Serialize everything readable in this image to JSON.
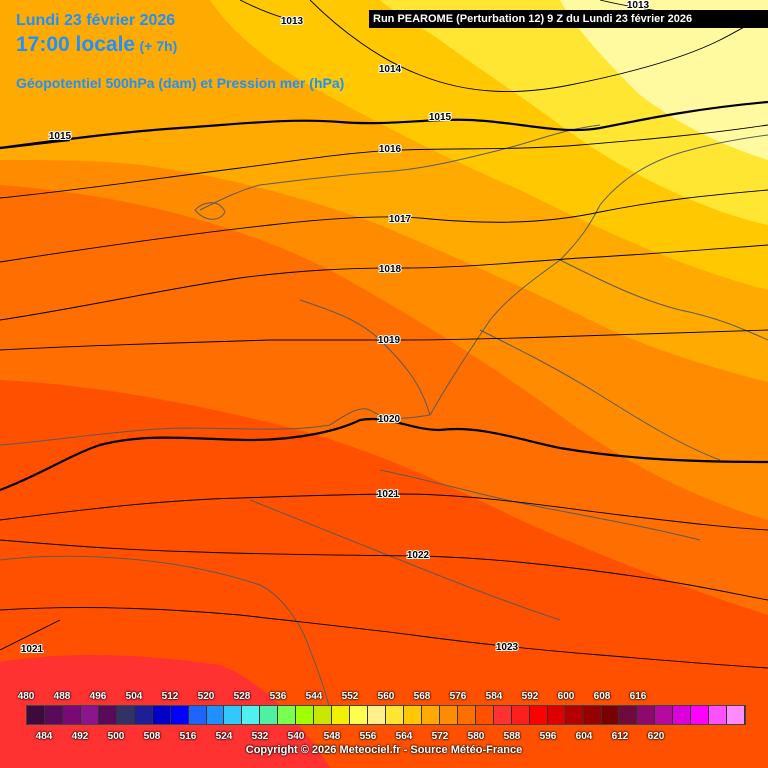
{
  "header": {
    "date": "Lundi 23 février 2026",
    "local_time": "17:00 locale",
    "offset": "(+ 7h)",
    "parameter": "Géopotentiel 500hPa (dam) et Pression mer (hPa)"
  },
  "run_info": "Run PEAROME (Perturbation 12) 9 Z du Lundi 23 février 2026",
  "isobars": [
    {
      "label": "1013",
      "value": 1013
    },
    {
      "label": "1013",
      "value": 1013
    },
    {
      "label": "1014",
      "value": 1014
    },
    {
      "label": "1015",
      "value": 1015
    },
    {
      "label": "1015",
      "value": 1015
    },
    {
      "label": "1016",
      "value": 1016
    },
    {
      "label": "1017",
      "value": 1017
    },
    {
      "label": "1018",
      "value": 1018
    },
    {
      "label": "1019",
      "value": 1019
    },
    {
      "label": "1020",
      "value": 1020
    },
    {
      "label": "1021",
      "value": 1021
    },
    {
      "label": "1021",
      "value": 1021
    },
    {
      "label": "1022",
      "value": 1022
    },
    {
      "label": "1023",
      "value": 1023
    }
  ],
  "legend": {
    "unit": "dam",
    "top_labels": [
      "480",
      "488",
      "496",
      "504",
      "512",
      "520",
      "528",
      "536",
      "544",
      "552",
      "560",
      "568",
      "576",
      "584",
      "592",
      "600",
      "608",
      "616"
    ],
    "bottom_labels": [
      "484",
      "492",
      "500",
      "508",
      "516",
      "524",
      "532",
      "540",
      "548",
      "556",
      "564",
      "572",
      "580",
      "588",
      "596",
      "604",
      "612",
      "620"
    ],
    "colors": [
      "#3c0a3c",
      "#5a0a5a",
      "#780a78",
      "#8c148c",
      "#5a0a5a",
      "#323264",
      "#1e1e96",
      "#0000c8",
      "#0000ff",
      "#1e64ff",
      "#1e90ff",
      "#32c8ff",
      "#50f0f0",
      "#50f0a0",
      "#78ff50",
      "#a0ff00",
      "#c8e600",
      "#f0f000",
      "#ffff50",
      "#fff08c",
      "#ffe632",
      "#ffc800",
      "#ffaa00",
      "#ff8c00",
      "#ff6e00",
      "#ff5000",
      "#ff3232",
      "#ff1e1e",
      "#ff0000",
      "#dc0000",
      "#b40000",
      "#960000",
      "#780000",
      "#6e0a3c",
      "#8c0a6e",
      "#b40aa0",
      "#dc00dc",
      "#ff00ff",
      "#ff50ff",
      "#ff8cff"
    ]
  },
  "fill_colors": {
    "pale": "#fffaa0",
    "light_yellow": "#ffe632",
    "gold": "#ffc800",
    "amber": "#ffaa00",
    "orange": "#ff8c00",
    "dark_orange": "#ff6e00",
    "red_orange": "#ff5000",
    "red": "#ff3232"
  },
  "copyright": "Copyright © 2026 Meteociel.fr - Source Météo-France"
}
